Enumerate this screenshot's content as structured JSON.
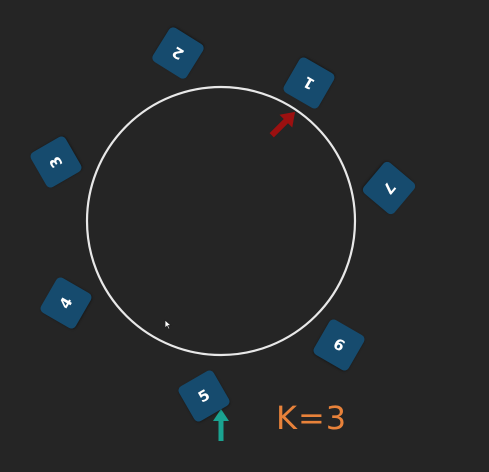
{
  "colors": {
    "background": "#252525",
    "ring": "#e8e8e8",
    "tile": "#164b6e",
    "tile_text": "#ffffff",
    "start_arrow": "#9c1010",
    "end_arrow": "#1aa391",
    "k_label": "#e8823a"
  },
  "tiles": [
    {
      "label": "1"
    },
    {
      "label": "2"
    },
    {
      "label": "3"
    },
    {
      "label": "4"
    },
    {
      "label": "5"
    },
    {
      "label": "6"
    },
    {
      "label": "7"
    }
  ],
  "k_label": "K=3",
  "icons": {
    "start_arrow": "arrow-icon",
    "end_arrow": "arrow-icon",
    "cursor": "mouse-pointer-icon"
  }
}
